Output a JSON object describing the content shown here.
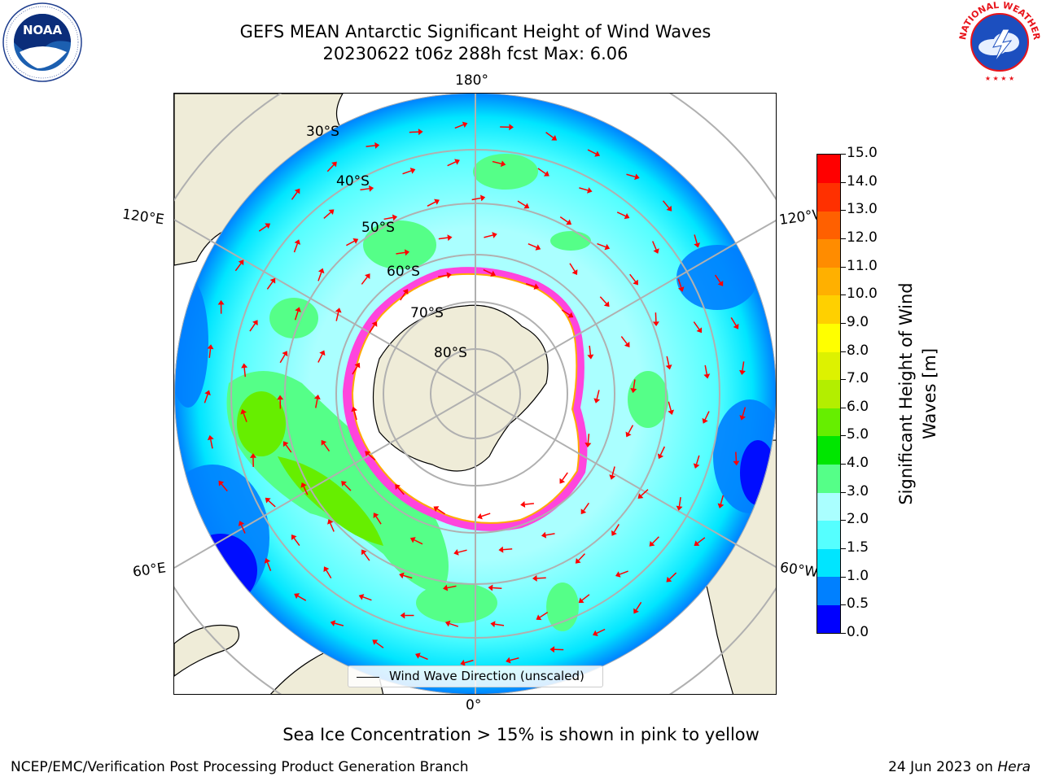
{
  "title": {
    "line1": "GEFS MEAN Antarctic Significant Height of Wind Waves",
    "line2": "20230622 t06z 288h fcst   Max: 6.06"
  },
  "map": {
    "projection": "south-polar-stereographic",
    "longitude_labels": {
      "top": "180°",
      "bottom": "0°",
      "upper_left": "120°E",
      "upper_right": "120°W",
      "lower_left": "60°E",
      "lower_right": "60°W"
    },
    "latitude_labels": [
      "30°S",
      "40°S",
      "50°S",
      "60°S",
      "70°S",
      "80°S"
    ],
    "colors": {
      "land": "#efecd8",
      "coastline": "#000000",
      "gridlines": "#b0b0b0",
      "arrows": "#ff0000",
      "sea_ice": "#ff44dd"
    }
  },
  "legend": {
    "label": "Wind Wave Direction (unscaled)"
  },
  "colorbar": {
    "label": "Significant Height of Wind Waves [m]",
    "label_lines": [
      "Significant Height of Wind",
      "Waves [m]"
    ],
    "ticks": [
      "0.0",
      "0.5",
      "1.0",
      "1.5",
      "2.0",
      "3.0",
      "4.0",
      "5.0",
      "6.0",
      "7.0",
      "8.0",
      "9.0",
      "10.0",
      "11.0",
      "12.0",
      "13.0",
      "14.0",
      "15.0"
    ],
    "colors": [
      "#0000ff",
      "#0080ff",
      "#00e5ff",
      "#55ffff",
      "#aaffff",
      "#55ff88",
      "#00e600",
      "#66ee00",
      "#b3ee00",
      "#ddf200",
      "#ffff00",
      "#ffd000",
      "#ffb000",
      "#ff8c00",
      "#ff6000",
      "#ff3000",
      "#ff0000"
    ]
  },
  "footnote": "Sea Ice Concentration > 15% is shown in pink to yellow",
  "credits": {
    "left": "NCEP/EMC/Verification Post Processing Product Generation Branch",
    "right_prefix": "24 Jun 2023 on ",
    "right_host": "Hera"
  },
  "logos": {
    "left": "NOAA",
    "right_text": "NATIONAL WEATHER SERVICE"
  }
}
